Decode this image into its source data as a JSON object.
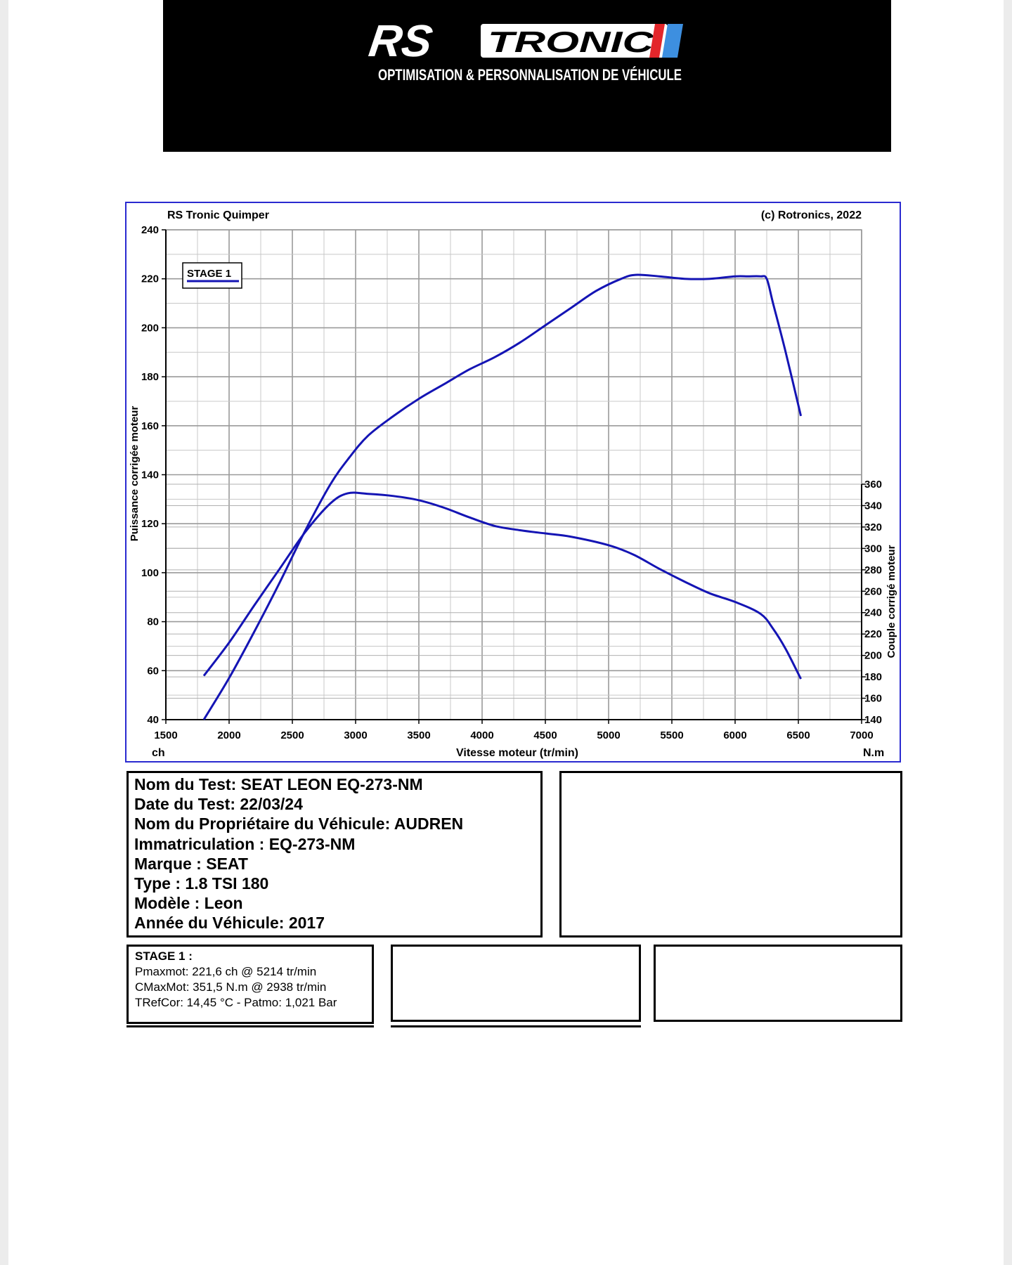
{
  "header": {
    "brand_rs": "RS",
    "brand_tronic": "TRONIC",
    "tagline": "OPTIMISATION & PERSONNALISATION DE VÉHICULE",
    "colors": {
      "background": "#000000",
      "stripe_red": "#e3262b",
      "stripe_blue": "#3d8fe0"
    }
  },
  "chart_header": {
    "left": "RS Tronic Quimper",
    "right": "(c) Rotronics, 2022"
  },
  "chart_data": {
    "type": "line",
    "xlabel": "Vitesse moteur (tr/min)",
    "x_unit_left": "ch",
    "x_unit_right": "N.m",
    "xlim": [
      1500,
      7000
    ],
    "x_ticks": [
      1500,
      2000,
      2500,
      3000,
      3500,
      4000,
      4500,
      5000,
      5500,
      6000,
      6500,
      7000
    ],
    "ylabel_left": "Puissance corrigée moteur",
    "ylim_left": [
      40,
      240
    ],
    "y_ticks_left": [
      40,
      60,
      80,
      100,
      120,
      140,
      160,
      180,
      200,
      220,
      240
    ],
    "ylabel_right": "Couple corrigé moteur",
    "ylim_right": [
      140,
      360
    ],
    "y_ticks_right": [
      140,
      160,
      180,
      200,
      220,
      240,
      260,
      280,
      300,
      320,
      340,
      360
    ],
    "grid": true,
    "legend": {
      "label": "STAGE 1",
      "placement": "top-left"
    },
    "line_color": "#1414b4",
    "series": [
      {
        "axis": "left",
        "x": [
          1800,
          2000,
          2200,
          2400,
          2600,
          2800,
          2950,
          3100,
          3300,
          3500,
          3700,
          3900,
          4100,
          4300,
          4500,
          4700,
          4900,
          5100,
          5214,
          5400,
          5600,
          5800,
          6000,
          6100,
          6200,
          6250,
          6300,
          6400,
          6520
        ],
        "values": [
          40,
          57,
          76,
          96,
          117,
          136,
          147,
          156,
          164,
          171,
          177,
          183,
          188,
          194,
          201,
          208,
          215,
          220,
          221.6,
          221,
          220,
          220,
          221,
          221,
          221,
          220,
          210,
          190,
          164
        ]
      },
      {
        "axis": "right",
        "x": [
          1800,
          2000,
          2200,
          2400,
          2600,
          2800,
          2938,
          3100,
          3300,
          3500,
          3700,
          3900,
          4100,
          4300,
          4500,
          4700,
          5000,
          5200,
          5400,
          5600,
          5800,
          6000,
          6200,
          6300,
          6400,
          6520
        ],
        "values": [
          181,
          212,
          247,
          281,
          315,
          342,
          351.5,
          351,
          349,
          345,
          338,
          329,
          321,
          317,
          314,
          311,
          303,
          294,
          281,
          269,
          258,
          250,
          239,
          225,
          206,
          178
        ]
      }
    ]
  },
  "info": {
    "lines": [
      "Nom du Test: SEAT LEON EQ-273-NM",
      "Date du Test: 22/03/24",
      "Nom du Propriétaire du Véhicule: AUDREN",
      "Immatriculation  : EQ-273-NM",
      "Marque  : SEAT",
      "Type  : 1.8 TSI 180",
      "Modèle  : Leon",
      "Année du Véhicule: 2017"
    ]
  },
  "stage": {
    "title": "STAGE 1  :",
    "lines": [
      "Pmaxmot: 221,6 ch @ 5214 tr/min",
      "CMaxMot: 351,5 N.m @ 2938 tr/min",
      "TRefCor: 14,45 °C - Patmo: 1,021 Bar"
    ]
  }
}
